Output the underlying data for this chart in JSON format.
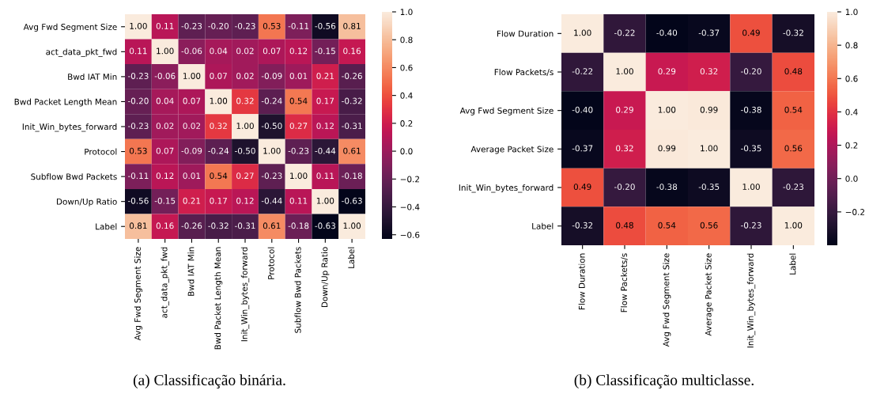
{
  "chart_data": [
    {
      "type": "heatmap",
      "categories": [
        "Avg Fwd Segment Size",
        "act_data_pkt_fwd",
        "Bwd IAT Min",
        "Bwd Packet Length Mean",
        "Init_Win_bytes_forward",
        "Protocol",
        "Subflow Bwd Packets",
        "Down/Up Ratio",
        "Label"
      ],
      "y_categories": [
        "Avg Fwd Segment Size",
        "act_data_pkt_fwd",
        "Bwd IAT Min",
        "Bwd Packet Length Mean",
        "Init_Win_bytes_forward",
        "Protocol",
        "Subflow Bwd Packets",
        "Down/Up Ratio",
        "Label"
      ],
      "cells": [
        [
          1.0,
          0.11,
          -0.23,
          -0.2,
          -0.23,
          0.53,
          -0.11,
          -0.56,
          0.81
        ],
        [
          0.11,
          1.0,
          -0.06,
          0.04,
          0.02,
          0.07,
          0.12,
          -0.15,
          0.16
        ],
        [
          -0.23,
          -0.06,
          1.0,
          0.07,
          0.02,
          -0.09,
          0.01,
          0.21,
          -0.26
        ],
        [
          -0.2,
          0.04,
          0.07,
          1.0,
          0.32,
          -0.24,
          0.54,
          0.17,
          -0.32
        ],
        [
          -0.23,
          0.02,
          0.02,
          0.32,
          1.0,
          -0.5,
          0.27,
          0.12,
          -0.31
        ],
        [
          0.53,
          0.07,
          -0.09,
          -0.24,
          -0.5,
          1.0,
          -0.23,
          -0.44,
          0.61
        ],
        [
          -0.11,
          0.12,
          0.01,
          0.54,
          0.27,
          -0.23,
          1.0,
          0.11,
          -0.18
        ],
        [
          -0.56,
          -0.15,
          0.21,
          0.17,
          0.12,
          -0.44,
          0.11,
          1.0,
          -0.63
        ],
        [
          0.81,
          0.16,
          -0.26,
          -0.32,
          -0.31,
          0.61,
          -0.18,
          -0.63,
          1.0
        ]
      ],
      "cell_labels": [
        [
          "1.00",
          "0.11",
          "-0.23",
          "-0.20",
          "-0.23",
          "0.53",
          "-0.11",
          "-0.56",
          "0.81"
        ],
        [
          "0.11",
          "1.00",
          "-0.06",
          "0.04",
          "0.02",
          "0.07",
          "0.12",
          "-0.15",
          "0.16"
        ],
        [
          "-0.23",
          "-0.06",
          "1.00",
          "0.07",
          "0.02",
          "-0.09",
          "0.01",
          "0.21",
          "-0.26"
        ],
        [
          "-0.20",
          "0.04",
          "0.07",
          "1.00",
          "0.32",
          "-0.24",
          "0.54",
          "0.17",
          "-0.32"
        ],
        [
          "-0.23",
          "0.02",
          "0.02",
          "0.32",
          "1.00",
          "-0.50",
          "0.27",
          "0.12",
          "-0.31"
        ],
        [
          "0.53",
          "0.07",
          "-0.09",
          "-0.24",
          "-0.50",
          "1.00",
          "-0.23",
          "-0.44",
          "0.61"
        ],
        [
          "-0.11",
          "0.12",
          "0.01",
          "0.54",
          "0.27",
          "-0.23",
          "1.00",
          "0.11",
          "-0.18"
        ],
        [
          "-0.56",
          "-0.15",
          "0.21",
          "0.17",
          "0.12",
          "-0.44",
          "0.11",
          "1.00",
          "-0.63"
        ],
        [
          "0.81",
          "0.16",
          "-0.26",
          "-0.32",
          "-0.31",
          "0.61",
          "-0.18",
          "-0.63",
          "1.00"
        ]
      ],
      "data_labels": true,
      "clim": [
        -0.63,
        1.0
      ],
      "cticks": [
        {
          "value": -0.6,
          "label": "−0.6"
        },
        {
          "value": -0.4,
          "label": "−0.4"
        },
        {
          "value": -0.2,
          "label": "−0.2"
        },
        {
          "value": 0,
          "label": "0.0"
        },
        0.2,
        0.4,
        0.6,
        0.8,
        {
          "value": 1,
          "label": "1.0"
        }
      ],
      "annotations": [
        "(a) Classificação binária."
      ]
    },
    {
      "type": "heatmap",
      "categories": [
        "Flow Duration",
        "Flow Packets/s",
        "Avg Fwd Segment Size",
        "Average Packet Size",
        "Init_Win_bytes_forward",
        "Label"
      ],
      "y_categories": [
        "Flow Duration",
        "Flow Packets/s",
        "Avg Fwd Segment Size",
        "Average Packet Size",
        "Init_Win_bytes_forward",
        "Label"
      ],
      "cells": [
        [
          1.0,
          -0.22,
          -0.4,
          -0.37,
          0.49,
          -0.32
        ],
        [
          -0.22,
          1.0,
          0.29,
          0.32,
          -0.2,
          0.48
        ],
        [
          -0.4,
          0.29,
          1.0,
          0.99,
          -0.38,
          0.54
        ],
        [
          -0.37,
          0.32,
          0.99,
          1.0,
          -0.35,
          0.56
        ],
        [
          0.49,
          -0.2,
          -0.38,
          -0.35,
          1.0,
          -0.23
        ],
        [
          -0.32,
          0.48,
          0.54,
          0.56,
          -0.23,
          1.0
        ]
      ],
      "cell_labels": [
        [
          "1.00",
          "-0.22",
          "-0.40",
          "-0.37",
          "0.49",
          "-0.32"
        ],
        [
          "-0.22",
          "1.00",
          "0.29",
          "0.32",
          "-0.20",
          "0.48"
        ],
        [
          "-0.40",
          "0.29",
          "1.00",
          "0.99",
          "-0.38",
          "0.54"
        ],
        [
          "-0.37",
          "0.32",
          "0.99",
          "1.00",
          "-0.35",
          "0.56"
        ],
        [
          "0.49",
          "-0.20",
          "-0.38",
          "-0.35",
          "1.00",
          "-0.23"
        ],
        [
          "-0.32",
          "0.48",
          "0.54",
          "0.56",
          "-0.23",
          "1.00"
        ]
      ],
      "data_labels": true,
      "clim": [
        -0.4,
        1.0
      ],
      "cticks": [
        {
          "value": -0.2,
          "label": "−0.2"
        },
        {
          "value": 0,
          "label": "0.0"
        },
        0.2,
        0.4,
        0.6,
        0.8,
        {
          "value": 1,
          "label": "1.0"
        }
      ],
      "annotations": [
        "(b) Classificação multiclasse."
      ]
    }
  ]
}
